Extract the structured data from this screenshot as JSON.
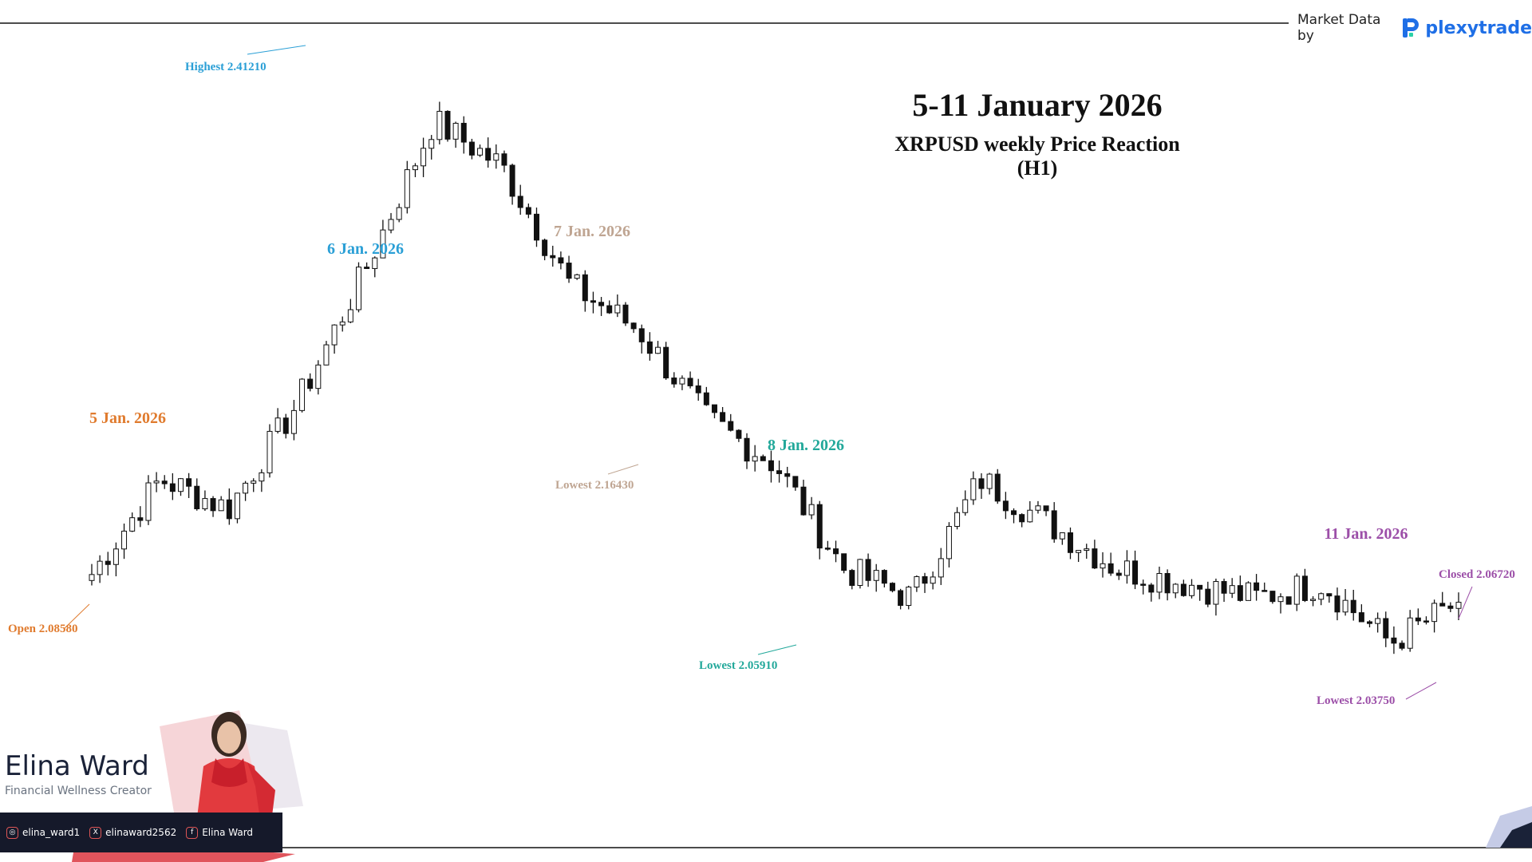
{
  "header": {
    "market_data_label": "Market Data by",
    "logo_text": "plexytrade"
  },
  "title": "5-11 January 2026",
  "subtitle": "XRPUSD weekly Price Reaction (H1)",
  "creator": {
    "name": "Elina Ward",
    "role": "Financial Wellness Creator",
    "instagram": "elina_ward1",
    "x": "elinaward2562",
    "facebook": "Elina Ward"
  },
  "colors": {
    "jan5": "#e07b2e",
    "jan6": "#2a9fd6",
    "jan7": "#bfa592",
    "jan8": "#22a89a",
    "jan11": "#9c4fa8",
    "candle": "#111111",
    "social_bar": "#15192a"
  },
  "chart_data": {
    "type": "candlestick",
    "timeframe": "H1",
    "symbol": "XRPUSD",
    "ylim": [
      2.0,
      2.45
    ],
    "day_labels": [
      {
        "date": "5 Jan. 2026",
        "color": "#e07b2e"
      },
      {
        "date": "6 Jan. 2026",
        "color": "#2a9fd6"
      },
      {
        "date": "7 Jan. 2026",
        "color": "#bfa592"
      },
      {
        "date": "8 Jan. 2026",
        "color": "#22a89a"
      },
      {
        "date": "11 Jan. 2026",
        "color": "#9c4fa8"
      }
    ],
    "annotations": [
      {
        "label": "Open 2.08580",
        "value": 2.0858,
        "color": "#e07b2e"
      },
      {
        "label": "Highest 2.41210",
        "value": 2.4121,
        "color": "#2a9fd6"
      },
      {
        "label": "Lowest 2.16430",
        "value": 2.1643,
        "color": "#bfa592"
      },
      {
        "label": "Lowest 2.05910",
        "value": 2.0591,
        "color": "#22a89a"
      },
      {
        "label": "Lowest 2.03750",
        "value": 2.0375,
        "color": "#9c4fa8"
      },
      {
        "label": "Closed 2.06720",
        "value": 2.0672,
        "color": "#9c4fa8"
      }
    ],
    "key_closes": [
      2.0858,
      2.15,
      2.13,
      2.2,
      2.29,
      2.39,
      2.36,
      2.28,
      2.25,
      2.19,
      2.16,
      2.09,
      2.07,
      2.15,
      2.12,
      2.09,
      2.08,
      2.07,
      2.08,
      2.04,
      2.0672
    ]
  }
}
